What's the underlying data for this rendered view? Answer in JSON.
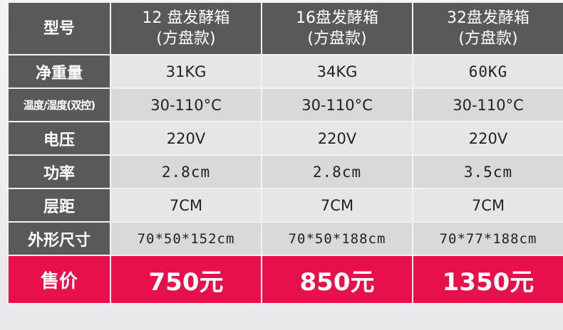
{
  "header": {
    "label": "型号",
    "models": [
      {
        "line1": "12 盘发酵箱",
        "line2": "(方盘款)"
      },
      {
        "line1": "16盘发酵箱",
        "line2": "(方盘款)"
      },
      {
        "line1": "32盘发酵箱",
        "line2": "(方盘款)"
      }
    ]
  },
  "rows": [
    {
      "label": "净重量",
      "values": [
        "31KG",
        "34KG",
        "60KG"
      ]
    },
    {
      "label": "温度/湿度(双控)",
      "values": [
        "30-110°C",
        "30-110°C",
        "30-110°C"
      ]
    },
    {
      "label": "电压",
      "values": [
        "220V",
        "220V",
        "220V"
      ]
    },
    {
      "label": "功率",
      "values": [
        "2.8cm",
        "2.8cm",
        "3.5cm"
      ]
    },
    {
      "label": "层距",
      "values": [
        "7CM",
        "7CM",
        "7CM"
      ]
    },
    {
      "label": "外形尺寸",
      "values": [
        "70*50*152cm",
        "70*50*188cm",
        "70*77*188cm"
      ]
    }
  ],
  "price": {
    "label": "售价",
    "values": [
      "750元",
      "850元",
      "1350元"
    ]
  },
  "colors": {
    "header_bg": "#595959",
    "price_bg": "#e8104a",
    "cell_light": "#e6e6e6",
    "cell_dark": "#d9d9d9"
  }
}
